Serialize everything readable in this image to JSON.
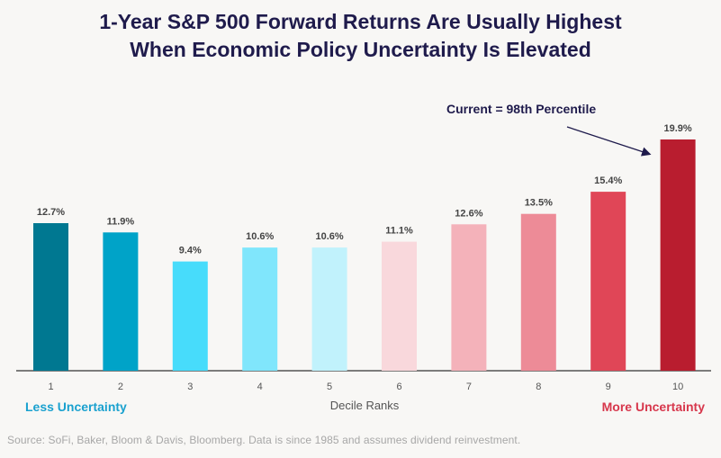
{
  "title_line1": "1-Year S&P 500 Forward Returns Are Usually Highest",
  "title_line2": "When Economic Policy Uncertainty Is Elevated",
  "annotation": "Current = 98th Percentile",
  "left_end_label": "Less Uncertainty",
  "right_end_label": "More Uncertainty",
  "source": "Source: SoFi, Baker, Bloom & Davis, Bloomberg. Data is since 1985 and assumes dividend reinvestment.",
  "chart_data": {
    "type": "bar",
    "categories": [
      "1",
      "2",
      "3",
      "4",
      "5",
      "6",
      "7",
      "8",
      "9",
      "10"
    ],
    "values": [
      12.7,
      11.9,
      9.4,
      10.6,
      10.6,
      11.1,
      12.6,
      13.5,
      15.4,
      19.9
    ],
    "data_labels": [
      "12.7%",
      "11.9%",
      "9.4%",
      "10.6%",
      "10.6%",
      "11.1%",
      "12.6%",
      "13.5%",
      "15.4%",
      "19.9%"
    ],
    "colors": [
      "#007891",
      "#00a3c8",
      "#47dcfb",
      "#80e6fc",
      "#c1f2fc",
      "#f9d8dc",
      "#f4b2ba",
      "#ed8b97",
      "#e04657",
      "#b91d2f"
    ],
    "title": "1-Year S&P 500 Forward Returns Are Usually Highest When Economic Policy Uncertainty Is Elevated",
    "xlabel": "Decile Ranks",
    "ylabel": "",
    "ylim": [
      0,
      19.9
    ],
    "grid": false,
    "colors_text": {
      "title": "#1f1b4c",
      "axis_text": "#555555",
      "value_label": "#444444",
      "less": "#1aa1cf",
      "more": "#d7374c",
      "source": "#a7a7a7",
      "annotation": "#1f1b4c"
    }
  }
}
